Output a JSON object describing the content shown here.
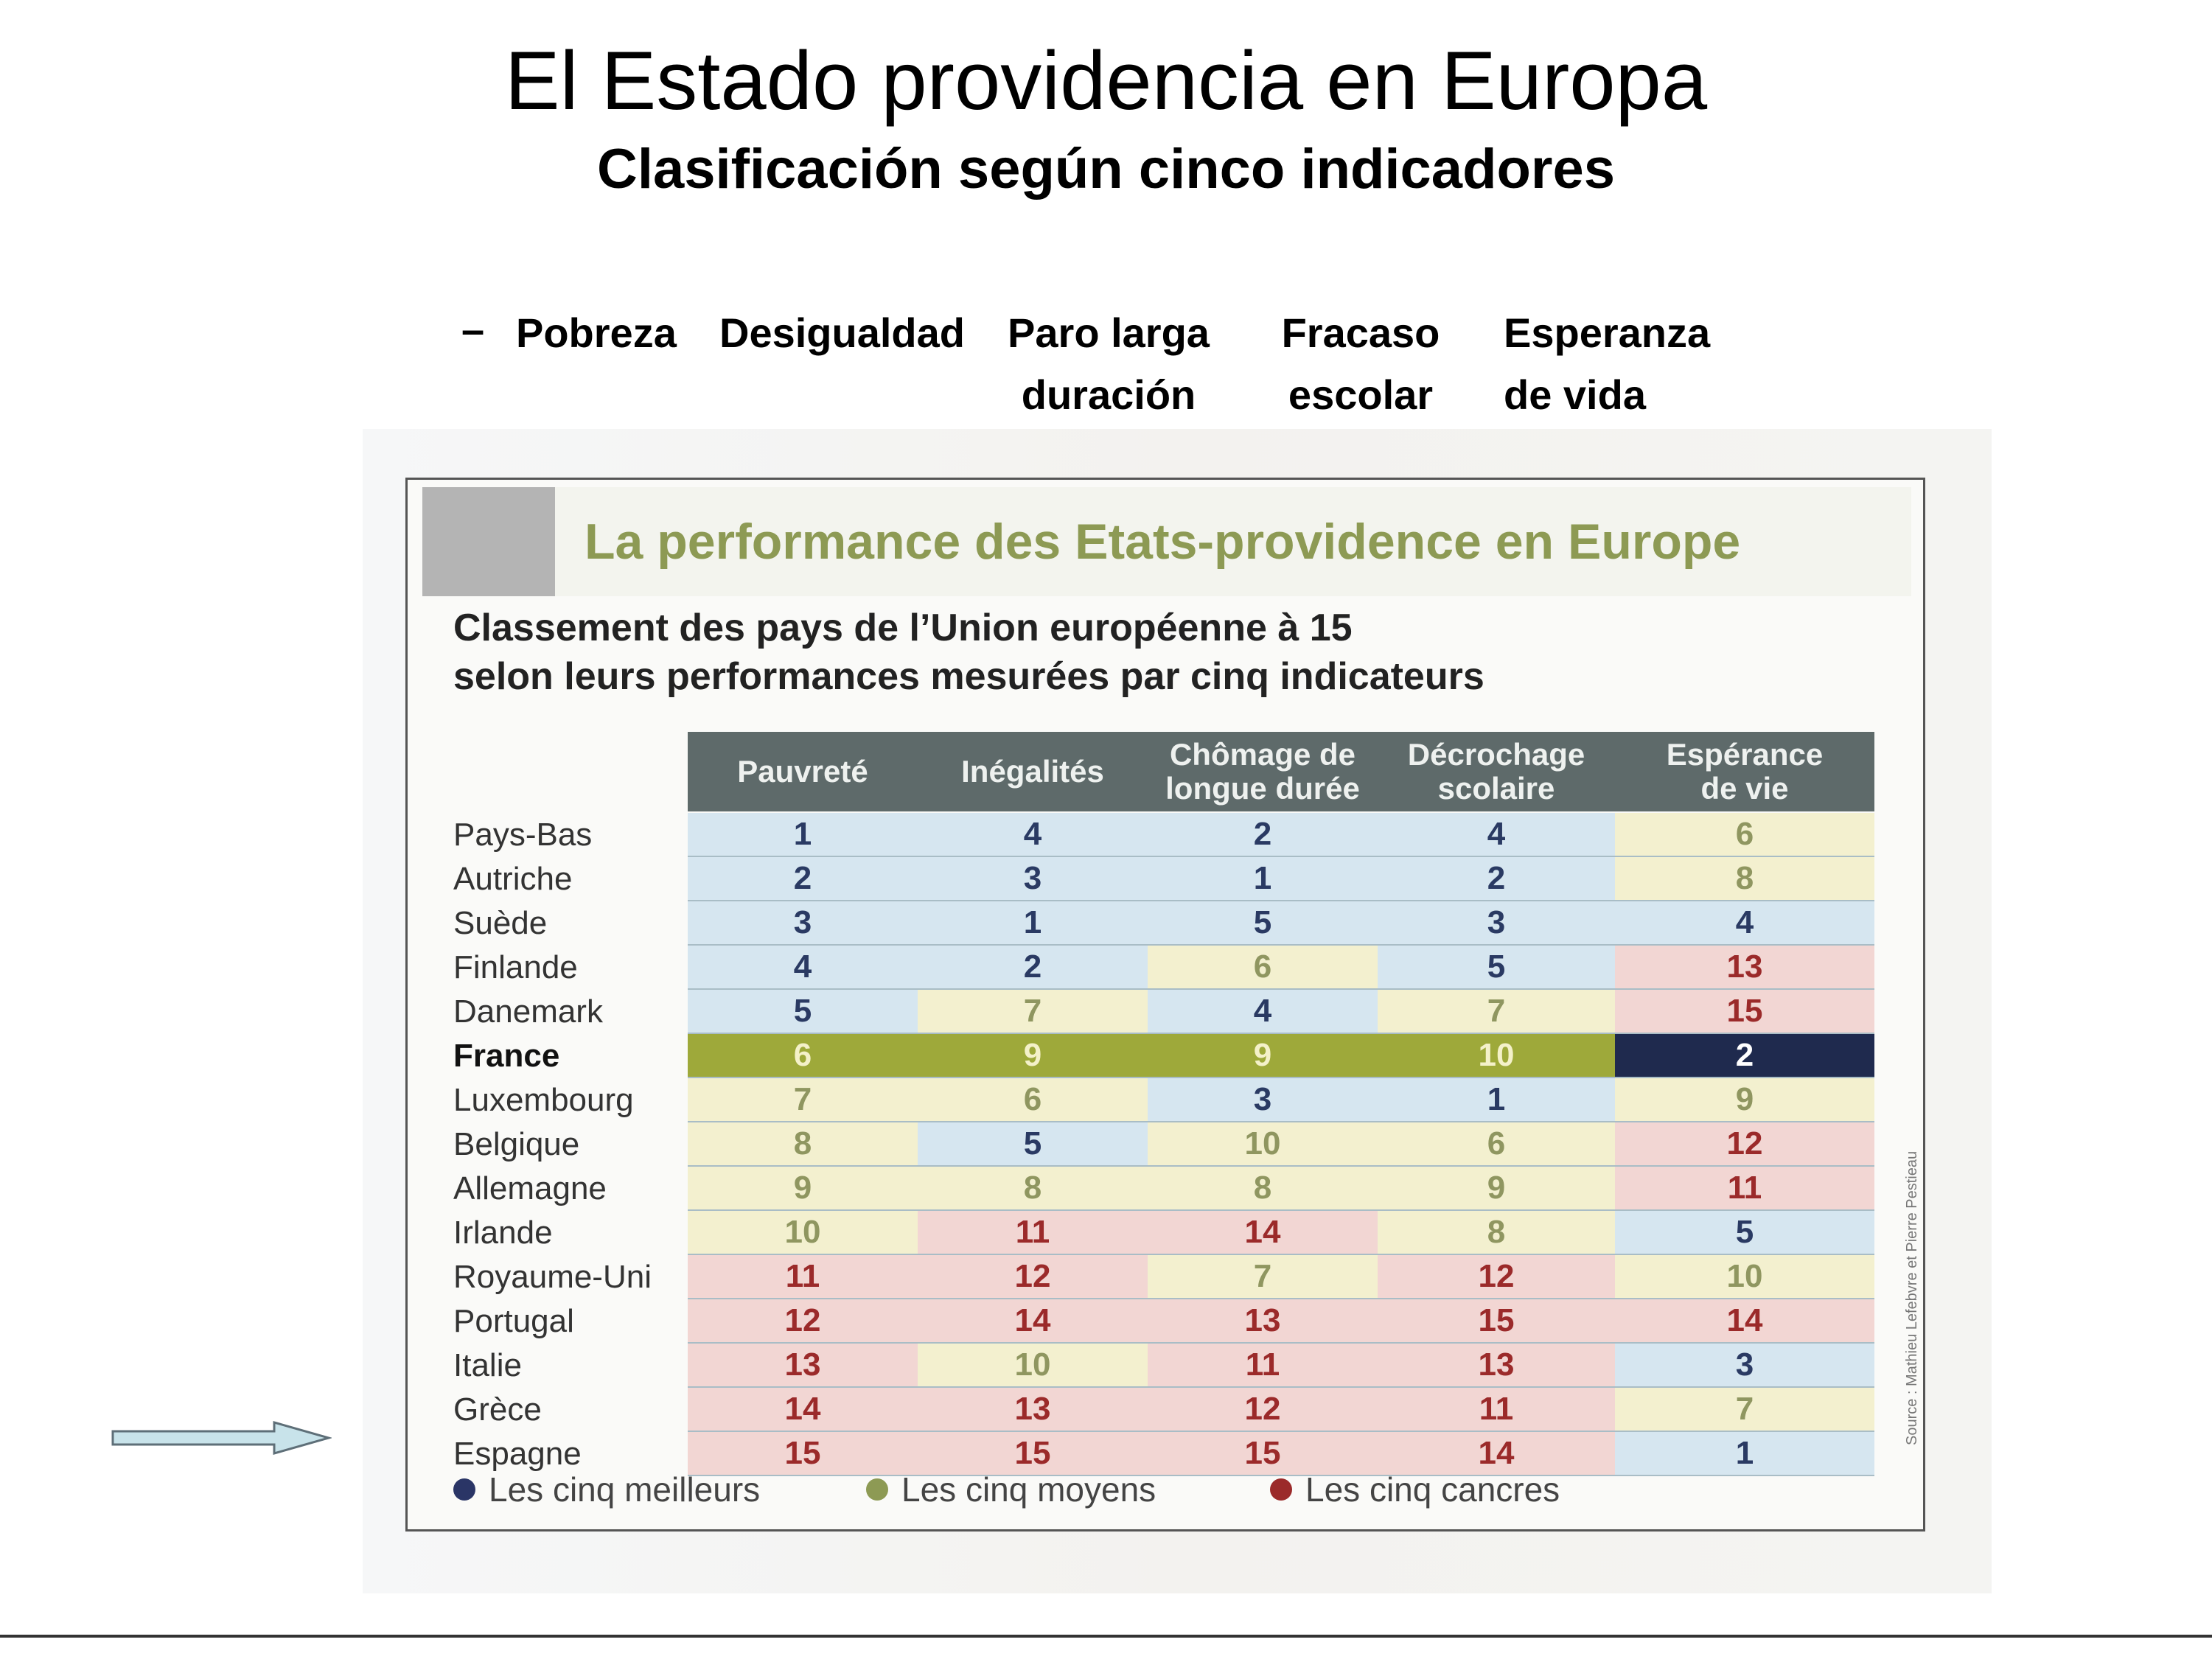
{
  "slide": {
    "title": "El Estado providencia en Europa",
    "subtitle": "Clasificación según cinco indicadores",
    "indicators_dash": "–",
    "indicators": [
      {
        "line1": "Pobreza",
        "line2": ""
      },
      {
        "line1": "Desigualdad",
        "line2": ""
      },
      {
        "line1": "Paro larga",
        "line2": "duración"
      },
      {
        "line1": "Fracaso",
        "line2": "escolar"
      },
      {
        "line1": "Esperanza",
        "line2": "de vida"
      }
    ]
  },
  "clipping": {
    "banner": "La performance des Etats-providence en Europe",
    "caption_line1": "Classement des pays de l’Union européenne à 15",
    "caption_line2": "selon leurs performances mesurées par cinq indicateurs",
    "columns": [
      {
        "line1": "Pauvreté",
        "line2": ""
      },
      {
        "line1": "Inégalités",
        "line2": ""
      },
      {
        "line1": "Chômage de",
        "line2": "longue durée"
      },
      {
        "line1": "Décrochage",
        "line2": "scolaire"
      },
      {
        "line1": "Espérance",
        "line2": "de vie"
      }
    ],
    "rows": [
      {
        "country": "Pays-Bas",
        "values": [
          1,
          4,
          2,
          4,
          6
        ]
      },
      {
        "country": "Autriche",
        "values": [
          2,
          3,
          1,
          2,
          8
        ]
      },
      {
        "country": "Suède",
        "values": [
          3,
          1,
          5,
          3,
          4
        ]
      },
      {
        "country": "Finlande",
        "values": [
          4,
          2,
          6,
          5,
          13
        ]
      },
      {
        "country": "Danemark",
        "values": [
          5,
          7,
          4,
          7,
          15
        ]
      },
      {
        "country": "France",
        "values": [
          6,
          9,
          9,
          10,
          2
        ]
      },
      {
        "country": "Luxembourg",
        "values": [
          7,
          6,
          3,
          1,
          9
        ]
      },
      {
        "country": "Belgique",
        "values": [
          8,
          5,
          10,
          6,
          12
        ]
      },
      {
        "country": "Allemagne",
        "values": [
          9,
          8,
          8,
          9,
          11
        ]
      },
      {
        "country": "Irlande",
        "values": [
          10,
          11,
          14,
          8,
          5
        ]
      },
      {
        "country": "Royaume-Uni",
        "values": [
          11,
          12,
          7,
          12,
          10
        ]
      },
      {
        "country": "Portugal",
        "values": [
          12,
          14,
          13,
          15,
          14
        ]
      },
      {
        "country": "Italie",
        "values": [
          13,
          10,
          11,
          13,
          3
        ]
      },
      {
        "country": "Grèce",
        "values": [
          14,
          13,
          12,
          11,
          7
        ]
      },
      {
        "country": "Espagne",
        "values": [
          15,
          15,
          15,
          14,
          1
        ]
      }
    ],
    "legend": [
      {
        "label": "Les cinq meilleurs",
        "color": "#2a3566"
      },
      {
        "label": "Les cinq moyens",
        "color": "#8d9a54"
      },
      {
        "label": "Les cinq cancres",
        "color": "#9b2a2a"
      }
    ],
    "source": "Source : Mathieu Lefebvre et Pierre Pestieau",
    "colors": {
      "best_bg": "#d6e6f0",
      "best_text": "#2a3a63",
      "mid_bg": "#f3f0cf",
      "mid_text": "#8f9660",
      "worst_bg": "#f2d6d3",
      "worst_text": "#9b2a2a",
      "france_bg": "#9ea93a",
      "france_text": "#f4f1c9",
      "france_best_bg": "#1f2a4e",
      "france_best_text": "#ffffff"
    }
  },
  "arrow": {
    "icon": "right-arrow-icon",
    "fill": "#c8e3ea",
    "stroke": "#5e6f78"
  }
}
